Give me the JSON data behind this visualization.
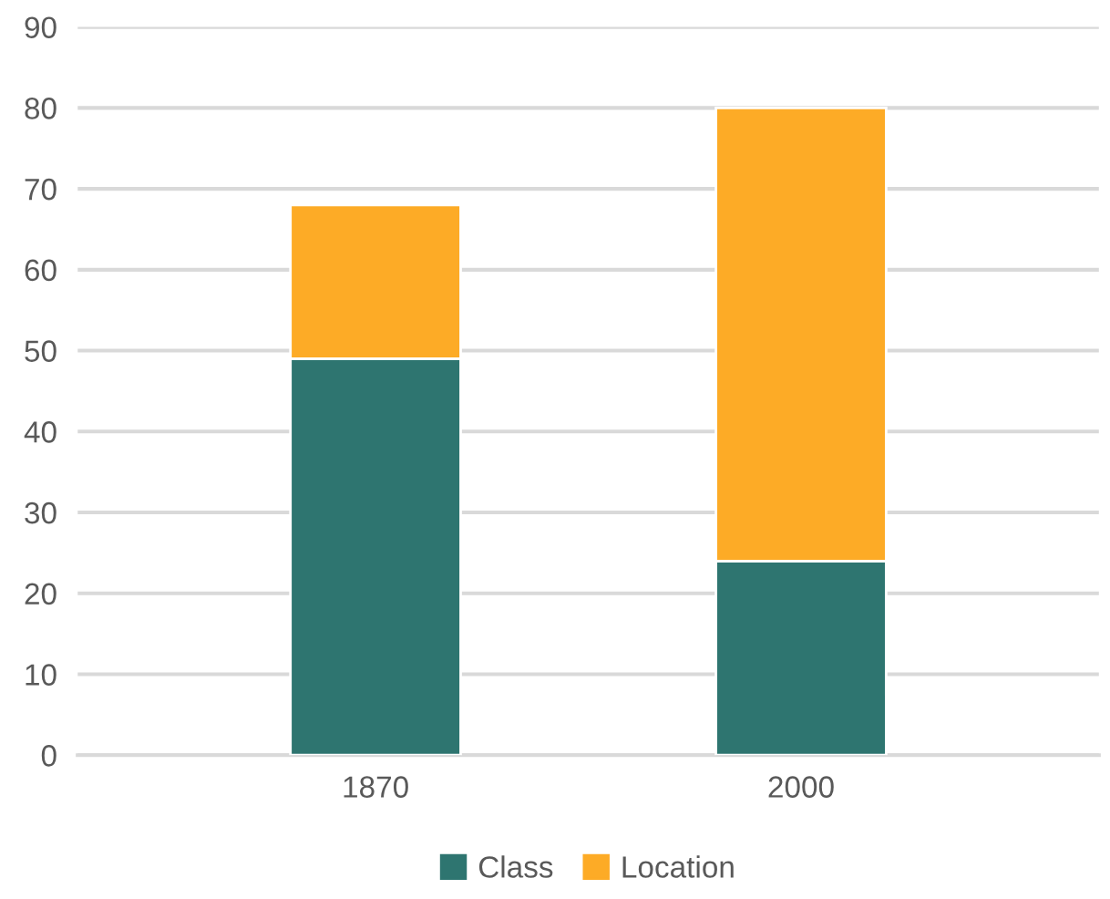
{
  "chart_data": {
    "type": "bar",
    "stacked": true,
    "categories": [
      "1870",
      "2000"
    ],
    "series": [
      {
        "name": "Class",
        "color": "#2e7570",
        "values": [
          49,
          24
        ]
      },
      {
        "name": "Location",
        "color": "#fdab26",
        "values": [
          19,
          56
        ]
      }
    ],
    "ylim": [
      0,
      90
    ],
    "yticks": [
      0,
      10,
      20,
      30,
      40,
      50,
      60,
      70,
      80,
      90
    ],
    "grid": "y",
    "legend": "bottom"
  }
}
